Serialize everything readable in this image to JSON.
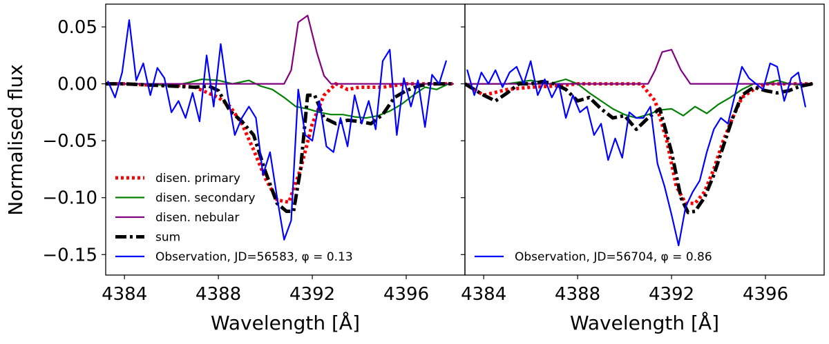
{
  "figure": {
    "ylabel": "Normalised flux",
    "xlabel": "Wavelength [Å]",
    "x_ticks": [
      "4384",
      "4388",
      "4392",
      "4396"
    ],
    "y_ticks": [
      "0.05",
      "0.00",
      "−0.05",
      "−0.10",
      "−0.15"
    ]
  },
  "chart_data": [
    {
      "type": "line",
      "panel": "left",
      "xlim": [
        4383.2,
        4398.5
      ],
      "ylim": [
        -0.168,
        0.07
      ],
      "xlabel": "Wavelength [Å]",
      "ylabel": "Normalised flux",
      "legend_position": "lower-left",
      "series": [
        {
          "key": "primary",
          "name": "disen. primary",
          "color": "#ff0000",
          "style": "dotted",
          "x": [
            4383.2,
            4384,
            4385,
            4386,
            4387,
            4388,
            4388.5,
            4389,
            4389.5,
            4390,
            4390.5,
            4391,
            4391.5,
            4392,
            4392.5,
            4393,
            4393.5,
            4394,
            4395,
            4396,
            4397,
            4398
          ],
          "y": [
            0.0,
            0.0,
            -0.001,
            -0.001,
            -0.003,
            -0.012,
            -0.02,
            -0.035,
            -0.058,
            -0.083,
            -0.102,
            -0.104,
            -0.075,
            -0.035,
            -0.01,
            0.0,
            -0.005,
            -0.003,
            -0.003,
            0.0,
            0.0,
            0.0
          ]
        },
        {
          "key": "secondary",
          "name": "disen. secondary",
          "color": "#008000",
          "style": "solid",
          "x": [
            4383.2,
            4384,
            4385,
            4386,
            4386.7,
            4387.3,
            4388,
            4388.6,
            4389.3,
            4389.8,
            4390.3,
            4390.8,
            4391.3,
            4391.8,
            4392.3,
            4392.8,
            4393.3,
            4393.8,
            4394.3,
            4394.8,
            4395.3,
            4395.8,
            4396.3,
            4396.8,
            4397.3,
            4397.8
          ],
          "y": [
            0.0,
            0.0,
            0.0,
            -0.002,
            0.001,
            0.004,
            0.003,
            0.0,
            0.003,
            -0.002,
            -0.005,
            -0.012,
            -0.02,
            -0.022,
            -0.025,
            -0.027,
            -0.027,
            -0.029,
            -0.03,
            -0.028,
            -0.024,
            -0.018,
            -0.01,
            -0.003,
            -0.005,
            0.0
          ]
        },
        {
          "key": "nebular",
          "name": "disen. nebular",
          "color": "#800080",
          "style": "solid",
          "x": [
            4383.2,
            4390.8,
            4391.1,
            4391.4,
            4391.8,
            4392.2,
            4392.5,
            4392.8,
            4398.0
          ],
          "y": [
            0.0,
            0.0,
            0.012,
            0.054,
            0.06,
            0.027,
            0.007,
            0.0,
            0.0
          ]
        },
        {
          "key": "sum",
          "name": "sum",
          "color": "#000000",
          "style": "dashdot",
          "x": [
            4383.2,
            4384,
            4385,
            4386,
            4387,
            4387.6,
            4388,
            4388.5,
            4389,
            4389.5,
            4390,
            4390.5,
            4390.9,
            4391.2,
            4391.5,
            4391.8,
            4392.1,
            4392.5,
            4393,
            4393.5,
            4394,
            4394.5,
            4395,
            4395.5,
            4396,
            4396.5,
            4397,
            4397.5,
            4398
          ],
          "y": [
            0.0,
            0.0,
            -0.001,
            -0.002,
            -0.003,
            -0.002,
            -0.006,
            -0.024,
            -0.033,
            -0.045,
            -0.077,
            -0.105,
            -0.112,
            -0.112,
            -0.075,
            -0.01,
            -0.01,
            -0.03,
            -0.035,
            -0.032,
            -0.033,
            -0.035,
            -0.027,
            -0.012,
            -0.006,
            -0.002,
            0.0,
            0.0,
            0.0
          ]
        },
        {
          "key": "observation",
          "name": "Observation, JD=56583, φ = 0.13",
          "color": "#0000ff",
          "style": "solid",
          "x": [
            4383.3,
            4383.6,
            4383.9,
            4384.2,
            4384.5,
            4384.8,
            4385.1,
            4385.4,
            4385.7,
            4386.0,
            4386.3,
            4386.6,
            4386.9,
            4387.2,
            4387.5,
            4387.8,
            4388.1,
            4388.4,
            4388.7,
            4389.0,
            4389.3,
            4389.6,
            4389.9,
            4390.2,
            4390.5,
            4390.8,
            4391.1,
            4391.4,
            4391.7,
            4392.0,
            4392.3,
            4392.6,
            4392.9,
            4393.2,
            4393.5,
            4393.8,
            4394.1,
            4394.4,
            4394.7,
            4395.0,
            4395.3,
            4395.6,
            4395.9,
            4396.2,
            4396.5,
            4396.8,
            4397.1,
            4397.4,
            4397.7
          ],
          "y": [
            0.002,
            -0.012,
            0.01,
            0.056,
            0.003,
            0.018,
            -0.01,
            0.014,
            0.005,
            -0.025,
            -0.015,
            -0.03,
            -0.008,
            -0.033,
            0.025,
            -0.02,
            0.035,
            -0.01,
            -0.045,
            -0.03,
            -0.02,
            -0.03,
            -0.08,
            -0.06,
            -0.1,
            -0.137,
            -0.12,
            -0.005,
            -0.045,
            -0.05,
            -0.015,
            -0.055,
            -0.06,
            -0.03,
            -0.055,
            -0.01,
            -0.035,
            -0.015,
            -0.04,
            0.02,
            0.03,
            -0.045,
            0.005,
            -0.02,
            0.003,
            -0.038,
            0.008,
            0.0,
            0.02
          ]
        }
      ]
    },
    {
      "type": "line",
      "panel": "right",
      "xlim": [
        4383.2,
        4398.5
      ],
      "ylim": [
        -0.168,
        0.07
      ],
      "xlabel": "Wavelength [Å]",
      "legend_position": "bottom-left",
      "series": [
        {
          "key": "primary",
          "name": "disen. primary",
          "color": "#ff0000",
          "style": "dotted",
          "x": [
            4383.2,
            4384,
            4385,
            4386,
            4387,
            4388,
            4389,
            4390,
            4390.7,
            4391.3,
            4391.8,
            4392.2,
            4392.6,
            4393.0,
            4393.4,
            4393.8,
            4394.2,
            4394.6,
            4395,
            4395.5,
            4396,
            4397,
            4398
          ],
          "y": [
            0.0,
            -0.01,
            -0.005,
            -0.003,
            -0.002,
            0.0,
            0.0,
            0.0,
            0.0,
            -0.015,
            -0.05,
            -0.09,
            -0.105,
            -0.105,
            -0.095,
            -0.075,
            -0.05,
            -0.03,
            -0.012,
            -0.005,
            0.0,
            0.0,
            0.0
          ]
        },
        {
          "key": "secondary",
          "name": "disen. secondary",
          "color": "#008000",
          "style": "solid",
          "x": [
            4383.2,
            4384,
            4385,
            4386,
            4386.8,
            4387.5,
            4388,
            4388.5,
            4389,
            4389.5,
            4390,
            4390.5,
            4391,
            4391.5,
            4392,
            4392.5,
            4393,
            4393.5,
            4394,
            4394.5,
            4395,
            4395.5,
            4396,
            4396.5,
            4397,
            4397.5,
            4398
          ],
          "y": [
            0.0,
            0.0,
            0.0,
            0.003,
            0.0,
            0.004,
            0.0,
            -0.008,
            -0.015,
            -0.022,
            -0.027,
            -0.03,
            -0.027,
            -0.023,
            -0.022,
            -0.028,
            -0.02,
            -0.026,
            -0.018,
            -0.012,
            -0.005,
            0.0,
            0.0,
            0.003,
            0.0,
            -0.001,
            0.0
          ]
        },
        {
          "key": "nebular",
          "name": "disen. nebular",
          "color": "#800080",
          "style": "solid",
          "x": [
            4383.2,
            4391.0,
            4391.3,
            4391.6,
            4392.0,
            4392.4,
            4392.8,
            4398.0
          ],
          "y": [
            0.0,
            0.0,
            0.012,
            0.028,
            0.03,
            0.012,
            0.0,
            0.0
          ]
        },
        {
          "key": "sum",
          "name": "sum",
          "color": "#000000",
          "style": "dashdot",
          "x": [
            4383.2,
            4384,
            4384.5,
            4385,
            4385.5,
            4386,
            4386.5,
            4387,
            4387.5,
            4388,
            4388.5,
            4389,
            4389.5,
            4390,
            4390.5,
            4391,
            4391.5,
            4392,
            4392.4,
            4392.7,
            4393.0,
            4393.4,
            4393.8,
            4394.2,
            4394.6,
            4395,
            4395.5,
            4396,
            4396.5,
            4397,
            4397.5,
            4398
          ],
          "y": [
            0.0,
            -0.01,
            -0.015,
            -0.008,
            0.0,
            0.0,
            0.002,
            0.0,
            -0.005,
            -0.015,
            -0.012,
            -0.022,
            -0.03,
            -0.028,
            -0.04,
            -0.03,
            -0.022,
            -0.06,
            -0.1,
            -0.113,
            -0.112,
            -0.1,
            -0.08,
            -0.055,
            -0.03,
            -0.01,
            -0.003,
            -0.006,
            -0.008,
            -0.006,
            -0.002,
            0.0
          ]
        },
        {
          "key": "observation",
          "name": "Observation, JD=56704, φ = 0.86",
          "color": "#0000ff",
          "style": "solid",
          "x": [
            4383.3,
            4383.6,
            4383.9,
            4384.2,
            4384.5,
            4384.8,
            4385.1,
            4385.4,
            4385.7,
            4386.0,
            4386.3,
            4386.6,
            4386.9,
            4387.2,
            4387.5,
            4387.8,
            4388.1,
            4388.4,
            4388.7,
            4389.0,
            4389.3,
            4389.6,
            4389.9,
            4390.2,
            4390.5,
            4390.8,
            4391.1,
            4391.4,
            4391.7,
            4392.0,
            4392.3,
            4392.6,
            4392.9,
            4393.2,
            4393.5,
            4393.8,
            4394.1,
            4394.4,
            4394.7,
            4395.0,
            4395.3,
            4395.6,
            4395.9,
            4396.2,
            4396.5,
            4396.8,
            4397.1,
            4397.4,
            4397.7
          ],
          "y": [
            0.012,
            -0.01,
            0.01,
            0.0,
            0.012,
            -0.003,
            0.01,
            0.015,
            0.0,
            0.02,
            -0.01,
            0.004,
            -0.012,
            0.0,
            -0.03,
            -0.01,
            -0.025,
            -0.02,
            -0.045,
            -0.035,
            -0.067,
            -0.048,
            -0.065,
            -0.025,
            -0.03,
            -0.03,
            -0.02,
            -0.07,
            -0.09,
            -0.115,
            -0.142,
            -0.108,
            -0.095,
            -0.085,
            -0.06,
            -0.04,
            -0.03,
            -0.035,
            -0.01,
            0.015,
            0.005,
            0.0,
            -0.005,
            0.018,
            0.015,
            -0.015,
            0.005,
            0.01,
            -0.02
          ]
        }
      ]
    }
  ]
}
